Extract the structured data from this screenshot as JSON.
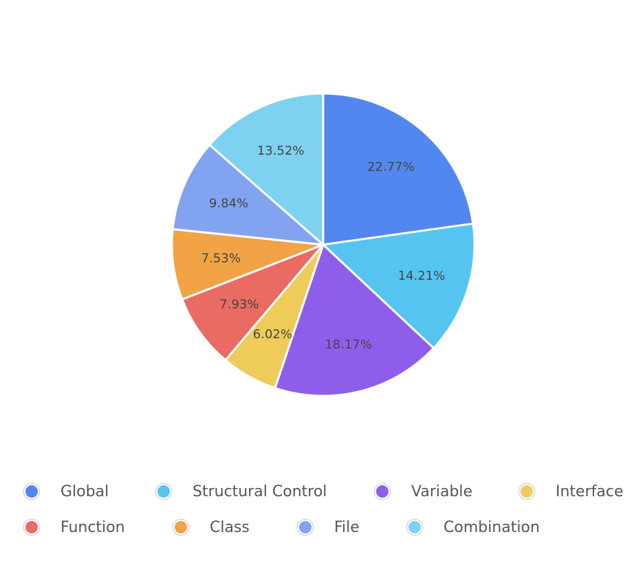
{
  "chart_data": {
    "type": "pie",
    "start_angle_deg": 90,
    "direction": "clockwise",
    "slices": [
      {
        "name": "Global",
        "value": 22.77,
        "label": "22.77%",
        "color": "#5387f0"
      },
      {
        "name": "Structural Control",
        "value": 14.21,
        "label": "14.21%",
        "color": "#55c4f1"
      },
      {
        "name": "Variable",
        "value": 18.17,
        "label": "18.17%",
        "color": "#8e5eeb"
      },
      {
        "name": "Interface",
        "value": 6.02,
        "label": "6.02%",
        "color": "#efcb5a"
      },
      {
        "name": "Function",
        "value": 7.93,
        "label": "7.93%",
        "color": "#ea6b64"
      },
      {
        "name": "Class",
        "value": 7.53,
        "label": "7.53%",
        "color": "#f2a345"
      },
      {
        "name": "File",
        "value": 9.84,
        "label": "9.84%",
        "color": "#82a3f0"
      },
      {
        "name": "Combination",
        "value": 13.52,
        "label": "13.52%",
        "color": "#7fd1f0"
      }
    ],
    "legend_position": "bottom"
  }
}
